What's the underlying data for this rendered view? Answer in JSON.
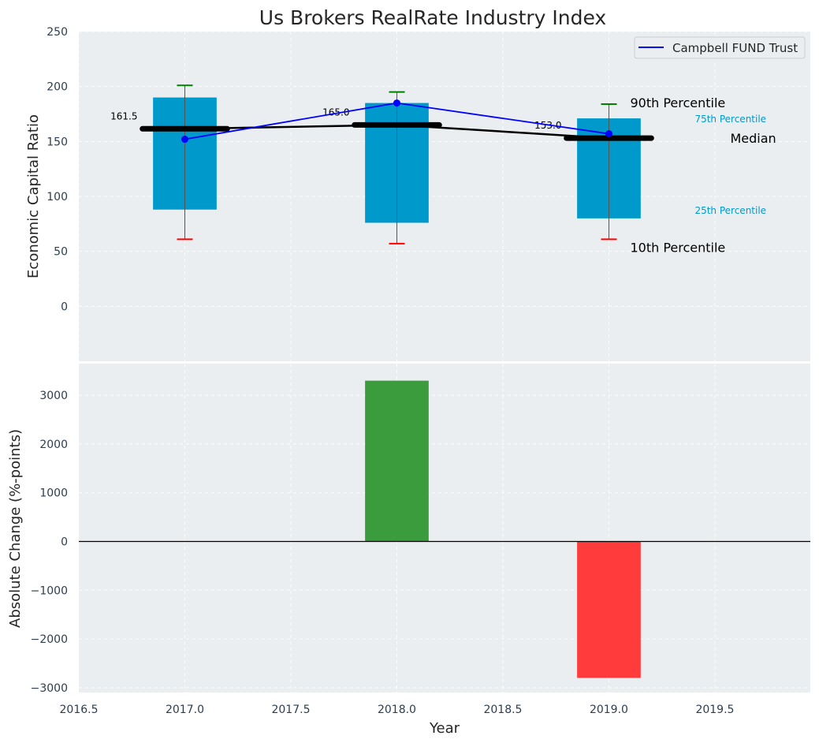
{
  "chart_data": [
    {
      "type": "box-range",
      "title": "Us Brokers RealRate Industry Index",
      "ylabel": "Economic Capital Ratio",
      "xlim": [
        2016.5,
        2019.95
      ],
      "ylim": [
        -50,
        250
      ],
      "yticks": [
        0,
        50,
        100,
        150,
        200,
        250
      ],
      "years": [
        2017.0,
        2018.0,
        2019.0
      ],
      "p10": [
        61,
        57,
        61
      ],
      "p25": [
        88,
        76,
        80
      ],
      "median": [
        161.5,
        165.0,
        153.0
      ],
      "median_labels": [
        "161.5",
        "165.0",
        "153.0"
      ],
      "p75": [
        190,
        185,
        171
      ],
      "p90": [
        201,
        195,
        184
      ],
      "series": [
        {
          "name": "Campbell FUND Trust",
          "values": [
            152,
            185,
            157
          ],
          "color": "#0000ff"
        }
      ],
      "legend": {
        "label": "Campbell FUND Trust",
        "position": "top-right"
      },
      "annotations": {
        "p90": "90th Percentile",
        "p75": "75th Percentile",
        "median": "Median",
        "p25": "25th Percentile",
        "p10": "10th Percentile"
      },
      "colors": {
        "box": "#0099cc",
        "whisker_high": "#008000",
        "whisker_low": "#ff0000",
        "median": "#000000",
        "plot_bg": "#eaeef0"
      }
    },
    {
      "type": "bar",
      "ylabel": "Absolute Change (%-points)",
      "xlabel": "Year",
      "xlim": [
        2016.5,
        2019.95
      ],
      "ylim": [
        -3100,
        3650
      ],
      "yticks": [
        -3000,
        -2000,
        -1000,
        0,
        1000,
        2000,
        3000
      ],
      "ytick_labels": [
        "−3000",
        "−2000",
        "−1000",
        "0",
        "1000",
        "2000",
        "3000"
      ],
      "xticks": [
        2016.5,
        2017.0,
        2017.5,
        2018.0,
        2018.5,
        2019.0,
        2019.5
      ],
      "xtick_labels": [
        "2016.5",
        "2017.0",
        "2017.5",
        "2018.0",
        "2018.5",
        "2019.0",
        "2019.5"
      ],
      "categories": [
        2018.0,
        2019.0
      ],
      "values": [
        3300,
        -2800
      ],
      "colors": {
        "positive": "#3a9c3c",
        "negative": "#ff3b3b"
      }
    }
  ]
}
